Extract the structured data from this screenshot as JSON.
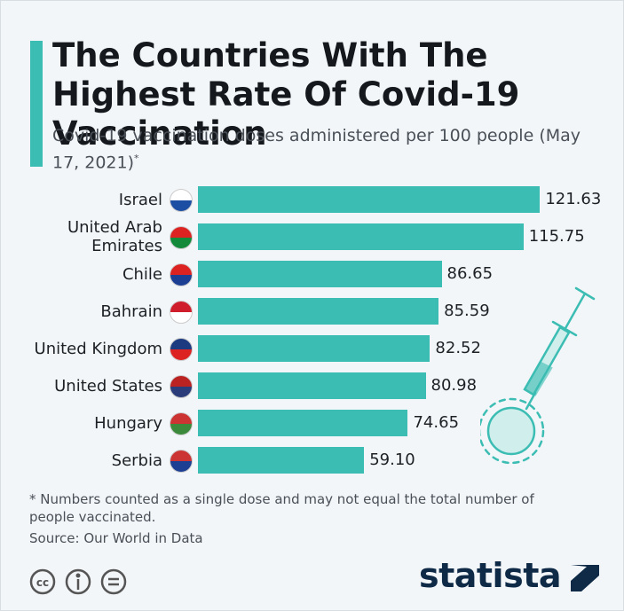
{
  "chart_data": {
    "type": "bar",
    "orientation": "horizontal",
    "title": "The Countries With The Highest Rate Of Covid-19 Vaccination",
    "subtitle": "Covid-19 vaccination doses administered per 100 people (May 17, 2021)",
    "subtitle_mark": "*",
    "categories": [
      "Israel",
      "United Arab Emirates",
      "Chile",
      "Bahrain",
      "United Kingdom",
      "United States",
      "Hungary",
      "Serbia"
    ],
    "values": [
      121.63,
      115.75,
      86.65,
      85.59,
      82.52,
      80.98,
      74.65,
      59.1
    ],
    "value_labels": [
      "121.63",
      "115.75",
      "86.65",
      "85.59",
      "82.52",
      "80.98",
      "74.65",
      "59.10"
    ],
    "color": "#3cbdb3",
    "xlim": [
      0,
      125
    ],
    "footnote": "* Numbers counted as a single dose and may not equal the total number of people vaccinated.",
    "source": "Source: Our World in Data",
    "logo": "statista"
  }
}
